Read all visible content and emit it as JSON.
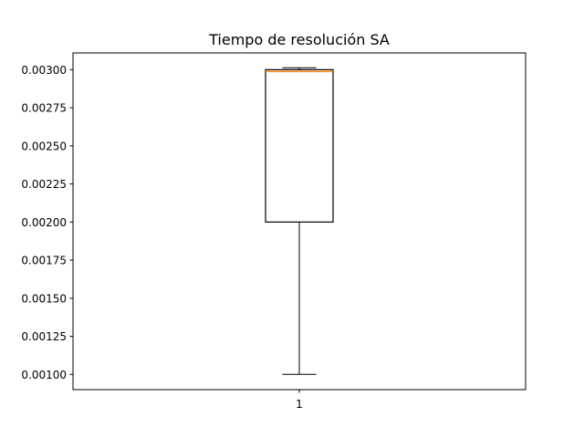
{
  "chart_data": {
    "type": "box",
    "title": "Tiempo de resolución SA",
    "xlabel": "",
    "ylabel": "",
    "categories": [
      "1"
    ],
    "boxes": [
      {
        "category": "1",
        "whisker_low": 0.001,
        "q1": 0.002,
        "median": 0.002988,
        "q3": 0.003,
        "whisker_high": 0.003013
      }
    ],
    "ylim": [
      0.0009,
      0.00311
    ],
    "yticks": [
      0.001,
      0.00125,
      0.0015,
      0.00175,
      0.002,
      0.00225,
      0.0025,
      0.00275,
      0.003
    ],
    "ytick_labels": [
      "0.00100",
      "0.00125",
      "0.00150",
      "0.00175",
      "0.00200",
      "0.00225",
      "0.00250",
      "0.00275",
      "0.00300"
    ],
    "grid": false,
    "colors": {
      "box": "#000000",
      "median": "#ff7f0e",
      "axes": "#000000"
    }
  }
}
